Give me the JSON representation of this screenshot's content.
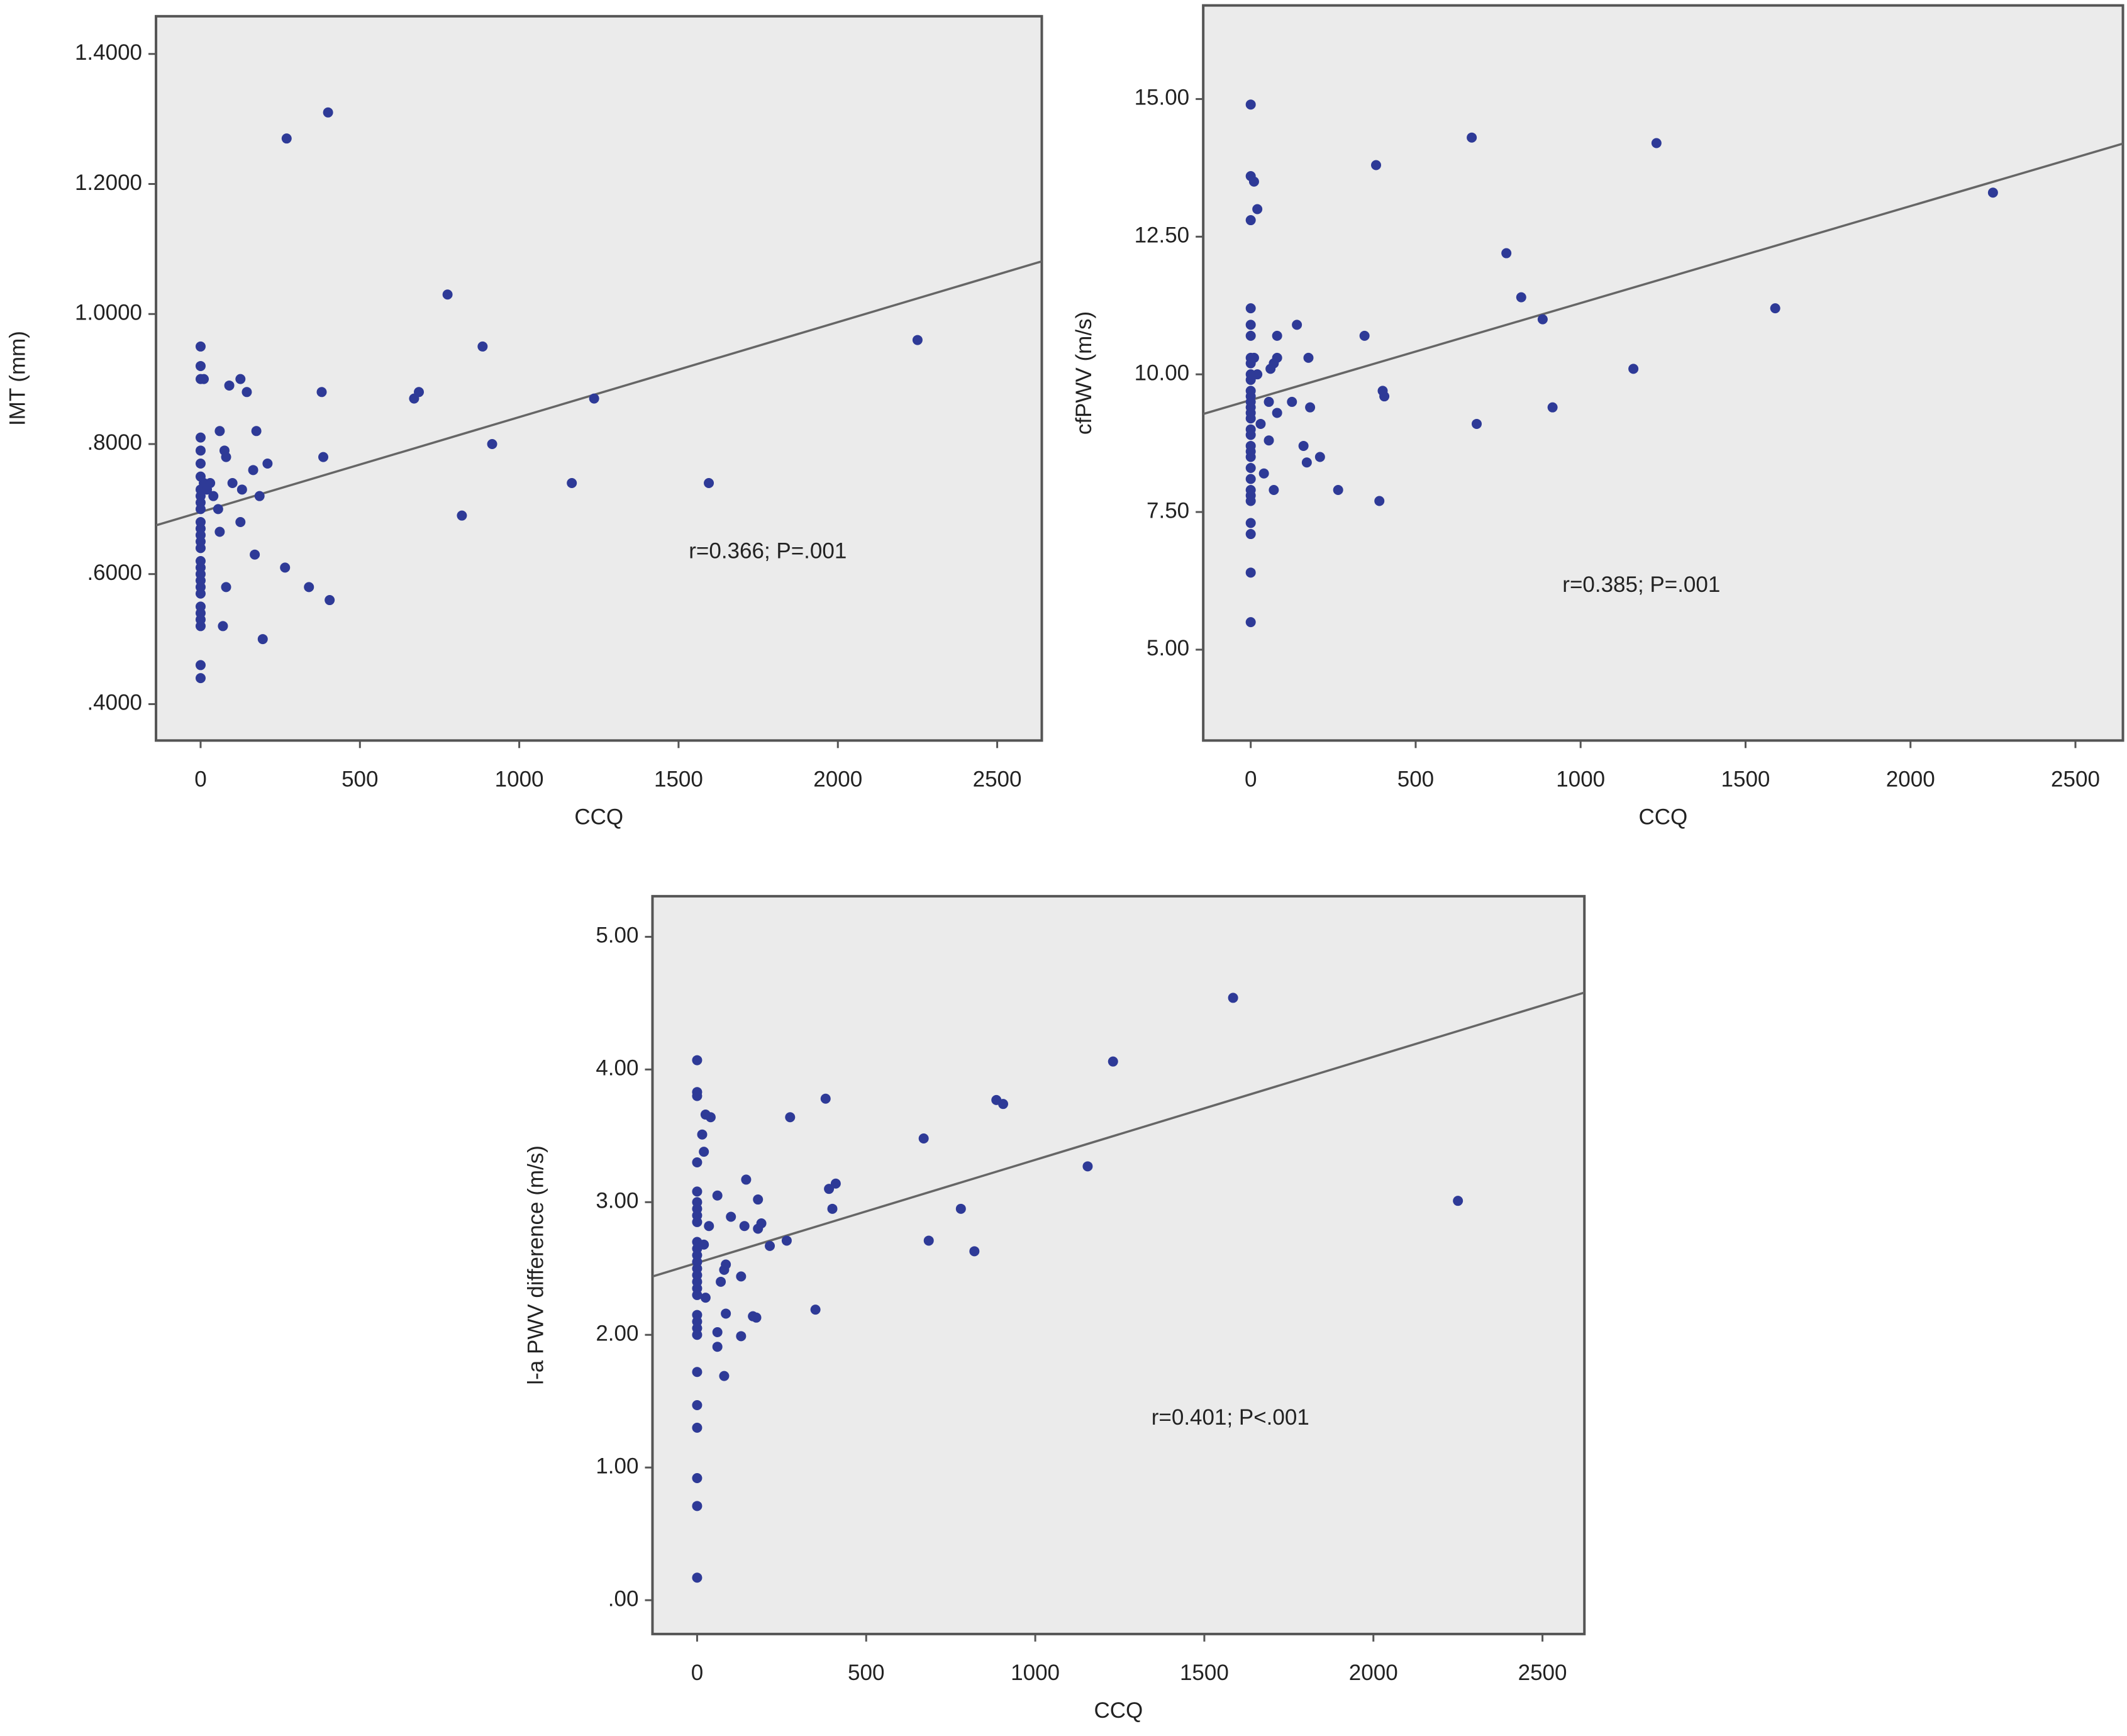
{
  "chart_data": [
    {
      "type": "scatter",
      "x_label": "CCQ",
      "y_label": "IMT (mm)",
      "annotation": "r=0.366; P=.001",
      "color": "#2e3a97",
      "x": [
        0,
        0,
        0,
        10,
        0,
        0,
        0,
        0,
        0,
        0,
        0,
        0,
        0,
        0,
        0,
        0,
        0,
        0,
        0,
        0,
        0,
        0,
        0,
        0,
        0,
        0,
        0,
        0,
        0,
        10,
        20,
        30,
        40,
        55,
        60,
        60,
        75,
        80,
        80,
        70,
        90,
        100,
        125,
        130,
        125,
        145,
        165,
        170,
        175,
        185,
        195,
        210,
        265,
        270,
        340,
        380,
        385,
        400,
        405,
        670,
        685,
        775,
        820,
        885,
        915,
        1165,
        1235,
        1595,
        2250
      ],
      "values": [
        0.95,
        0.92,
        0.9,
        0.9,
        0.81,
        0.79,
        0.77,
        0.75,
        0.73,
        0.72,
        0.71,
        0.7,
        0.68,
        0.67,
        0.66,
        0.65,
        0.64,
        0.62,
        0.61,
        0.6,
        0.59,
        0.58,
        0.57,
        0.55,
        0.54,
        0.53,
        0.52,
        0.46,
        0.44,
        0.74,
        0.73,
        0.74,
        0.72,
        0.7,
        0.665,
        0.82,
        0.79,
        0.78,
        0.58,
        0.52,
        0.89,
        0.74,
        0.9,
        0.73,
        0.68,
        0.88,
        0.76,
        0.63,
        0.82,
        0.72,
        0.5,
        0.77,
        0.61,
        1.27,
        0.58,
        0.88,
        0.78,
        1.31,
        0.56,
        0.87,
        0.88,
        1.03,
        0.69,
        0.95,
        0.8,
        0.74,
        0.87,
        0.74,
        0.96
      ],
      "fit": {
        "x": [
          -140,
          2640
        ],
        "y": [
          0.675,
          1.081
        ]
      },
      "xlim": [
        -140,
        2640
      ],
      "xticks": [
        0,
        500,
        1000,
        1500,
        2000,
        2500
      ],
      "ylim": [
        0.344,
        1.458
      ],
      "yticks": [
        {
          "value": 0.4,
          "label": ".4000"
        },
        {
          "value": 0.6,
          "label": ".6000"
        },
        {
          "value": 0.8,
          "label": ".8000"
        },
        {
          "value": 1.0,
          "label": "1.0000"
        },
        {
          "value": 1.2,
          "label": "1.2000"
        },
        {
          "value": 1.4,
          "label": "1.4000"
        }
      ]
    },
    {
      "type": "scatter",
      "x_label": "CCQ",
      "y_label": "cfPWV (m/s)",
      "annotation": "r=0.385; P=.001",
      "color": "#2e3a97",
      "x": [
        0,
        0,
        10,
        20,
        0,
        0,
        0,
        0,
        0,
        0,
        0,
        0,
        0,
        0,
        0,
        0,
        0,
        0,
        0,
        0,
        0,
        0,
        0,
        0,
        0,
        0,
        0,
        0,
        0,
        0,
        0,
        0,
        10,
        20,
        30,
        40,
        55,
        55,
        60,
        70,
        70,
        80,
        80,
        80,
        125,
        140,
        160,
        170,
        175,
        180,
        210,
        265,
        345,
        380,
        390,
        400,
        405,
        670,
        685,
        775,
        820,
        885,
        915,
        1160,
        1230,
        1590,
        2250
      ],
      "values": [
        14.9,
        13.6,
        13.5,
        13.0,
        12.8,
        11.2,
        10.9,
        10.7,
        10.3,
        10.2,
        10.0,
        9.9,
        9.7,
        9.6,
        9.5,
        9.4,
        9.3,
        9.2,
        9.0,
        8.9,
        8.7,
        8.6,
        8.5,
        8.3,
        8.1,
        7.9,
        7.8,
        7.7,
        7.3,
        7.1,
        6.4,
        5.5,
        10.3,
        10.0,
        9.1,
        8.2,
        9.5,
        8.8,
        10.1,
        7.9,
        10.2,
        10.7,
        9.3,
        10.3,
        9.5,
        10.9,
        8.7,
        8.4,
        10.3,
        9.4,
        8.5,
        7.9,
        10.7,
        13.8,
        7.7,
        9.7,
        9.6,
        14.3,
        9.1,
        12.2,
        11.4,
        11.0,
        9.4,
        10.1,
        14.2,
        11.2,
        13.3
      ],
      "fit": {
        "x": [
          -144,
          2644
        ],
        "y": [
          9.28,
          14.19
        ]
      },
      "xlim": [
        -144,
        2644
      ],
      "xticks": [
        0,
        500,
        1000,
        1500,
        2000,
        2500
      ],
      "ylim": [
        3.35,
        16.7
      ],
      "yticks": [
        {
          "value": 5,
          "label": "5.00"
        },
        {
          "value": 7.5,
          "label": "7.50"
        },
        {
          "value": 10,
          "label": "10.00"
        },
        {
          "value": 12.5,
          "label": "12.50"
        },
        {
          "value": 15,
          "label": "15.00"
        }
      ]
    },
    {
      "type": "scatter",
      "x_label": "CCQ",
      "y_label": "l-a PWV difference (m/s)",
      "annotation": "r=0.401; P<.001",
      "color": "#2e3a97",
      "x": [
        0,
        0,
        0,
        0,
        0,
        0,
        0,
        0,
        0,
        0,
        0,
        0,
        0,
        0,
        0,
        0,
        0,
        0,
        0,
        0,
        0,
        0,
        0,
        0,
        0,
        0,
        0,
        0,
        15,
        20,
        25,
        40,
        35,
        20,
        25,
        60,
        60,
        60,
        80,
        70,
        85,
        80,
        85,
        100,
        130,
        130,
        145,
        140,
        165,
        175,
        180,
        180,
        190,
        215,
        265,
        275,
        350,
        380,
        390,
        400,
        410,
        670,
        685,
        780,
        820,
        885,
        905,
        1155,
        1230,
        1585,
        2250
      ],
      "values": [
        4.07,
        3.83,
        3.8,
        3.3,
        3.08,
        3.0,
        2.95,
        2.9,
        2.85,
        2.7,
        2.65,
        2.6,
        2.55,
        2.5,
        2.45,
        2.4,
        2.35,
        2.3,
        2.15,
        2.1,
        2.05,
        2.0,
        1.72,
        1.47,
        1.3,
        0.92,
        0.71,
        0.17,
        3.51,
        3.38,
        3.66,
        3.64,
        2.82,
        2.68,
        2.28,
        3.05,
        2.02,
        1.91,
        1.69,
        2.4,
        2.53,
        2.49,
        2.16,
        2.89,
        2.44,
        1.99,
        3.17,
        2.82,
        2.14,
        2.13,
        3.02,
        2.8,
        2.84,
        2.67,
        2.71,
        3.64,
        2.19,
        3.78,
        3.1,
        2.95,
        3.14,
        3.48,
        2.71,
        2.95,
        2.63,
        3.77,
        3.74,
        3.27,
        4.06,
        4.54,
        3.01
      ],
      "fit": {
        "x": [
          -132,
          2624
        ],
        "y": [
          2.44,
          4.58
        ]
      },
      "xlim": [
        -132,
        2624
      ],
      "xticks": [
        0,
        500,
        1000,
        1500,
        2000,
        2500
      ],
      "ylim": [
        -0.255,
        5.306
      ],
      "yticks": [
        {
          "value": 0,
          "label": ".00"
        },
        {
          "value": 1,
          "label": "1.00"
        },
        {
          "value": 2,
          "label": "2.00"
        },
        {
          "value": 3,
          "label": "3.00"
        },
        {
          "value": 4,
          "label": "4.00"
        },
        {
          "value": 5,
          "label": "5.00"
        }
      ]
    }
  ]
}
